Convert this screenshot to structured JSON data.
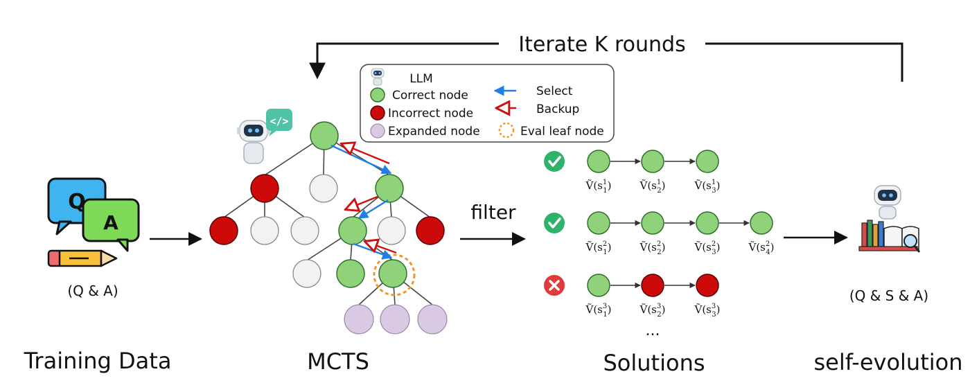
{
  "iterate_label": "Iterate K rounds",
  "legend": {
    "llm": "LLM",
    "correct": "Correct node",
    "incorrect": "Incorrect node",
    "expanded": "Expanded node",
    "select": "Select",
    "backup": "Backup",
    "eval_leaf": "Eval leaf node"
  },
  "training": {
    "q_letter": "Q",
    "a_letter": "A",
    "pair_label": "(Q & A)",
    "caption": "Training Data"
  },
  "mcts_caption": "MCTS",
  "filter_label": "filter",
  "solutions": {
    "caption": "Solutions",
    "ellipsis": "...",
    "rows": [
      {
        "status": "correct",
        "nodes": [
          "correct",
          "correct",
          "correct"
        ],
        "values": [
          {
            "v": "Ṽ(s",
            "sub": "1",
            "sup": "1"
          },
          {
            "v": "Ṽ(s",
            "sub": "2",
            "sup": "1"
          },
          {
            "v": "Ṽ(s",
            "sub": "3",
            "sup": "1"
          }
        ]
      },
      {
        "status": "correct",
        "nodes": [
          "correct",
          "correct",
          "correct",
          "correct"
        ],
        "values": [
          {
            "v": "Ṽ(s",
            "sub": "1",
            "sup": "2"
          },
          {
            "v": "Ṽ(s",
            "sub": "2",
            "sup": "2"
          },
          {
            "v": "Ṽ(s",
            "sub": "3",
            "sup": "2"
          },
          {
            "v": "Ṽ(s",
            "sub": "4",
            "sup": "2"
          }
        ]
      },
      {
        "status": "incorrect",
        "nodes": [
          "correct",
          "incorrect",
          "incorrect"
        ],
        "values": [
          {
            "v": "Ṽ(s",
            "sub": "1",
            "sup": "3"
          },
          {
            "v": "Ṽ(s",
            "sub": "2",
            "sup": "3"
          },
          {
            "v": "Ṽ(s",
            "sub": "3",
            "sup": "3"
          }
        ]
      }
    ]
  },
  "self_evolution": {
    "pair_label": "(Q & S & A)",
    "caption": "self-evolution"
  },
  "colors": {
    "correct": "#8fd27a",
    "incorrect": "#cc0a0a",
    "expanded": "#d9c9e2",
    "select_arrow": "#1e7fe6",
    "backup_arrow": "#d01010",
    "eval_ring": "#f0962a"
  }
}
